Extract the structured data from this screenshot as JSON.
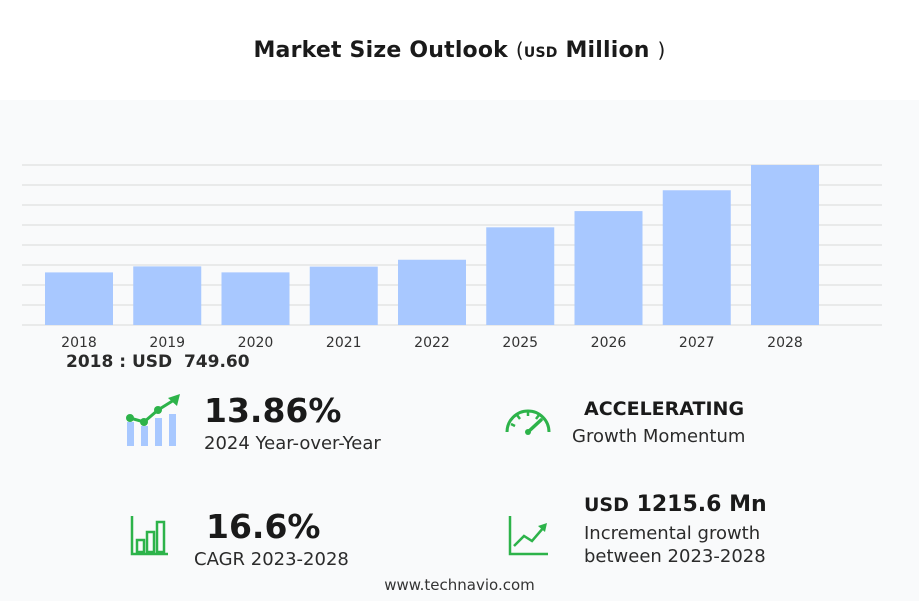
{
  "title": {
    "main": "Market Size Outlook",
    "paren_open": "(",
    "unit": "USD",
    "scale": "Million",
    "paren_close": ")"
  },
  "chart_data": {
    "type": "bar",
    "categories": [
      "2018",
      "2019",
      "2020",
      "2021",
      "2022",
      "2025",
      "2026",
      "2027",
      "2028"
    ],
    "values": [
      749.6,
      835,
      750,
      832,
      930,
      1392,
      1623,
      1920,
      2280
    ],
    "ylim": [
      0,
      2280
    ],
    "grid": true,
    "bar_color": "#a8c8ff",
    "grid_color": "#d9d9d9"
  },
  "base_value": {
    "label": "2018 : USD",
    "value": "749.60"
  },
  "kpis": {
    "yoy": {
      "value": "13.86%",
      "label": "2024 Year-over-Year",
      "icon": "growth-chart-icon"
    },
    "momentum": {
      "value": "ACCELERATING",
      "label": "Growth Momentum",
      "icon": "speedometer-icon"
    },
    "cagr": {
      "value": "16.6%",
      "label": "CAGR 2023-2028",
      "icon": "bar-chart-icon"
    },
    "incremental": {
      "prefix": "USD",
      "value": "1215.6 Mn",
      "line1": "Incremental growth",
      "line2": "between 2023-2028",
      "icon": "trend-line-icon"
    }
  },
  "colors": {
    "icon_green": "#2db34a",
    "icon_blue": "#a8c8ff"
  },
  "footer": "www.technavio.com"
}
